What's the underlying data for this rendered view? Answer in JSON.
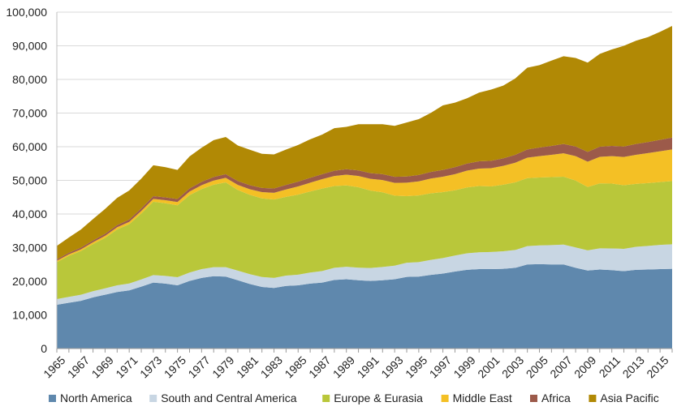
{
  "chart_data": {
    "type": "area",
    "stacked": true,
    "title": "",
    "xlabel": "",
    "ylabel": "",
    "ylim": [
      0,
      100000
    ],
    "y_ticks": [
      "0",
      "10,000",
      "20,000",
      "30,000",
      "40,000",
      "50,000",
      "60,000",
      "70,000",
      "80,000",
      "90,000",
      "100,000"
    ],
    "y_tick_values": [
      0,
      10000,
      20000,
      30000,
      40000,
      50000,
      60000,
      70000,
      80000,
      90000,
      100000
    ],
    "x_tick_labels": [
      "1965",
      "1967",
      "1969",
      "1971",
      "1973",
      "1975",
      "1977",
      "1979",
      "1981",
      "1983",
      "1985",
      "1987",
      "1989",
      "1991",
      "1993",
      "1995",
      "1997",
      "1999",
      "2001",
      "2003",
      "2005",
      "2007",
      "2009",
      "2011",
      "2013",
      "2015"
    ],
    "grid": "horizontal",
    "legend_position": "bottom",
    "x": [
      1965,
      1966,
      1967,
      1968,
      1969,
      1970,
      1971,
      1972,
      1973,
      1974,
      1975,
      1976,
      1977,
      1978,
      1979,
      1980,
      1981,
      1982,
      1983,
      1984,
      1985,
      1986,
      1987,
      1988,
      1989,
      1990,
      1991,
      1992,
      1993,
      1994,
      1995,
      1996,
      1997,
      1998,
      1999,
      2000,
      2001,
      2002,
      2003,
      2004,
      2005,
      2006,
      2007,
      2008,
      2009,
      2010,
      2011,
      2012,
      2013,
      2014,
      2015,
      2016
    ],
    "series": [
      {
        "name": "North America",
        "color": "#5f88ad",
        "values": [
          13000,
          13600,
          14200,
          15200,
          16000,
          16800,
          17300,
          18400,
          19600,
          19300,
          18800,
          20100,
          21000,
          21500,
          21400,
          20300,
          19200,
          18300,
          18000,
          18600,
          18800,
          19300,
          19600,
          20400,
          20600,
          20300,
          20100,
          20300,
          20600,
          21300,
          21400,
          21900,
          22300,
          22900,
          23400,
          23600,
          23600,
          23700,
          24000,
          25000,
          25100,
          25000,
          25000,
          24000,
          23200,
          23500,
          23300,
          23000,
          23400,
          23500,
          23600,
          23700
        ]
      },
      {
        "name": "South and Central America",
        "color": "#c8d6e3",
        "values": [
          1700,
          1750,
          1800,
          1850,
          1900,
          2000,
          2050,
          2150,
          2250,
          2300,
          2400,
          2500,
          2600,
          2700,
          2800,
          2850,
          2900,
          2950,
          3000,
          3100,
          3150,
          3300,
          3450,
          3600,
          3700,
          3750,
          3850,
          3950,
          4050,
          4200,
          4300,
          4450,
          4600,
          4750,
          4900,
          5000,
          5100,
          5200,
          5300,
          5450,
          5550,
          5750,
          5900,
          6050,
          6000,
          6300,
          6450,
          6650,
          6850,
          7000,
          7200,
          7300
        ]
      },
      {
        "name": "Europe & Eurasia",
        "color": "#b9c73a",
        "values": [
          11000,
          12200,
          13000,
          14000,
          15000,
          16600,
          17600,
          19600,
          21800,
          21600,
          21400,
          23000,
          23800,
          24500,
          25200,
          24000,
          23600,
          23400,
          23300,
          23400,
          23800,
          24100,
          24500,
          24300,
          24200,
          23900,
          23000,
          22200,
          20800,
          19800,
          19800,
          19800,
          19600,
          19400,
          19600,
          19700,
          19500,
          19800,
          20100,
          20200,
          20200,
          20200,
          20200,
          19900,
          18800,
          19300,
          19300,
          18900,
          18700,
          18700,
          18700,
          18800
        ]
      },
      {
        "name": "Middle East",
        "color": "#f4c025",
        "values": [
          400,
          450,
          500,
          550,
          600,
          650,
          700,
          750,
          850,
          900,
          950,
          1050,
          1150,
          1250,
          1350,
          1500,
          1650,
          1850,
          2000,
          2200,
          2450,
          2600,
          2800,
          3000,
          3200,
          3350,
          3500,
          3650,
          3800,
          4000,
          4200,
          4400,
          4600,
          4800,
          5000,
          5200,
          5400,
          5600,
          5850,
          6100,
          6350,
          6650,
          6950,
          7250,
          7550,
          7900,
          8150,
          8400,
          8650,
          8900,
          9150,
          9400
        ]
      },
      {
        "name": "Africa",
        "color": "#9c5a4a",
        "values": [
          400,
          450,
          500,
          550,
          600,
          650,
          700,
          750,
          800,
          850,
          900,
          950,
          1000,
          1050,
          1100,
          1150,
          1200,
          1250,
          1300,
          1350,
          1400,
          1450,
          1500,
          1550,
          1600,
          1650,
          1700,
          1750,
          1800,
          1850,
          1900,
          1950,
          2000,
          2050,
          2100,
          2150,
          2200,
          2250,
          2350,
          2450,
          2550,
          2650,
          2750,
          2850,
          2900,
          3000,
          3050,
          3100,
          3200,
          3300,
          3400,
          3500
        ]
      },
      {
        "name": "Asia Pacific",
        "color": "#b18905",
        "values": [
          4000,
          4550,
          5400,
          6350,
          7400,
          8100,
          8650,
          8850,
          9200,
          8950,
          8650,
          9500,
          10150,
          10950,
          11050,
          10550,
          10550,
          10150,
          10100,
          10500,
          10900,
          11450,
          11750,
          12650,
          12600,
          13750,
          14550,
          14850,
          15150,
          16050,
          16600,
          17550,
          19200,
          19200,
          19400,
          20450,
          21200,
          21600,
          22700,
          24300,
          24500,
          25350,
          26100,
          26350,
          26550,
          27600,
          28650,
          29950,
          30700,
          31200,
          32100,
          33200
        ]
      }
    ]
  }
}
